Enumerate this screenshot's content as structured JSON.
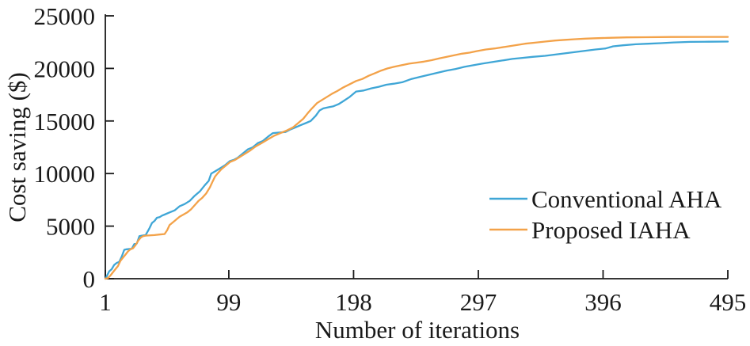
{
  "figure": {
    "description": "Convergence comparison line chart",
    "background": "#ffffff",
    "axis_color": "#1a1a1a"
  },
  "chart_data": {
    "type": "line",
    "title": "",
    "xlabel": "Number of iterations",
    "ylabel": "Cost saving ($)",
    "xlim": [
      1,
      495
    ],
    "ylim": [
      0,
      25000
    ],
    "xticks": [
      1,
      99,
      198,
      297,
      396,
      495
    ],
    "yticks": [
      0,
      5000,
      10000,
      15000,
      20000,
      25000
    ],
    "grid": false,
    "legend_position": "lower-right-inside",
    "legend_border": false,
    "series": [
      {
        "name": "Conventional AHA",
        "color": "#3FA6D6",
        "final_value": 22550,
        "points": [
          [
            1,
            0
          ],
          [
            2,
            200
          ],
          [
            4,
            700
          ],
          [
            6,
            900
          ],
          [
            8,
            1300
          ],
          [
            10,
            1500
          ],
          [
            12,
            1600
          ],
          [
            14,
            2100
          ],
          [
            16,
            2750
          ],
          [
            18,
            2800
          ],
          [
            22,
            2850
          ],
          [
            24,
            3300
          ],
          [
            26,
            3350
          ],
          [
            28,
            4050
          ],
          [
            30,
            4100
          ],
          [
            33,
            4150
          ],
          [
            36,
            4800
          ],
          [
            38,
            5300
          ],
          [
            40,
            5500
          ],
          [
            42,
            5800
          ],
          [
            44,
            5850
          ],
          [
            46,
            6000
          ],
          [
            48,
            6100
          ],
          [
            52,
            6300
          ],
          [
            56,
            6500
          ],
          [
            60,
            6900
          ],
          [
            64,
            7100
          ],
          [
            68,
            7400
          ],
          [
            72,
            7900
          ],
          [
            76,
            8300
          ],
          [
            80,
            8900
          ],
          [
            83,
            9300
          ],
          [
            85,
            10000
          ],
          [
            88,
            10200
          ],
          [
            92,
            10500
          ],
          [
            96,
            10800
          ],
          [
            100,
            11200
          ],
          [
            103,
            11300
          ],
          [
            106,
            11500
          ],
          [
            110,
            11900
          ],
          [
            114,
            12300
          ],
          [
            118,
            12500
          ],
          [
            122,
            12900
          ],
          [
            126,
            13100
          ],
          [
            130,
            13500
          ],
          [
            134,
            13850
          ],
          [
            139,
            13900
          ],
          [
            144,
            13950
          ],
          [
            148,
            14200
          ],
          [
            152,
            14400
          ],
          [
            156,
            14600
          ],
          [
            160,
            14800
          ],
          [
            164,
            15000
          ],
          [
            168,
            15500
          ],
          [
            171,
            16000
          ],
          [
            174,
            16200
          ],
          [
            178,
            16300
          ],
          [
            182,
            16400
          ],
          [
            186,
            16600
          ],
          [
            190,
            16900
          ],
          [
            195,
            17300
          ],
          [
            200,
            17800
          ],
          [
            206,
            17900
          ],
          [
            212,
            18100
          ],
          [
            218,
            18250
          ],
          [
            224,
            18450
          ],
          [
            230,
            18550
          ],
          [
            237,
            18700
          ],
          [
            244,
            19000
          ],
          [
            251,
            19200
          ],
          [
            258,
            19400
          ],
          [
            265,
            19600
          ],
          [
            272,
            19800
          ],
          [
            279,
            19950
          ],
          [
            286,
            20150
          ],
          [
            293,
            20300
          ],
          [
            300,
            20450
          ],
          [
            308,
            20600
          ],
          [
            316,
            20750
          ],
          [
            324,
            20900
          ],
          [
            332,
            21000
          ],
          [
            340,
            21100
          ],
          [
            350,
            21200
          ],
          [
            360,
            21350
          ],
          [
            370,
            21500
          ],
          [
            380,
            21650
          ],
          [
            390,
            21800
          ],
          [
            398,
            21900
          ],
          [
            404,
            22100
          ],
          [
            412,
            22200
          ],
          [
            422,
            22300
          ],
          [
            432,
            22350
          ],
          [
            442,
            22400
          ],
          [
            452,
            22470
          ],
          [
            465,
            22520
          ],
          [
            480,
            22540
          ],
          [
            495,
            22550
          ]
        ]
      },
      {
        "name": "Proposed IAHA",
        "color": "#F3A249",
        "final_value": 23000,
        "points": [
          [
            1,
            0
          ],
          [
            3,
            50
          ],
          [
            5,
            300
          ],
          [
            7,
            600
          ],
          [
            9,
            900
          ],
          [
            11,
            1200
          ],
          [
            13,
            1700
          ],
          [
            15,
            2000
          ],
          [
            17,
            2300
          ],
          [
            19,
            2600
          ],
          [
            21,
            2800
          ],
          [
            23,
            2900
          ],
          [
            25,
            3200
          ],
          [
            27,
            3600
          ],
          [
            29,
            3900
          ],
          [
            31,
            4050
          ],
          [
            33,
            4100
          ],
          [
            40,
            4150
          ],
          [
            44,
            4200
          ],
          [
            48,
            4250
          ],
          [
            50,
            4600
          ],
          [
            52,
            5100
          ],
          [
            54,
            5300
          ],
          [
            56,
            5500
          ],
          [
            58,
            5700
          ],
          [
            60,
            5900
          ],
          [
            63,
            6100
          ],
          [
            66,
            6300
          ],
          [
            69,
            6600
          ],
          [
            72,
            7000
          ],
          [
            75,
            7400
          ],
          [
            78,
            7700
          ],
          [
            81,
            8100
          ],
          [
            84,
            8700
          ],
          [
            86,
            9200
          ],
          [
            88,
            9700
          ],
          [
            90,
            10000
          ],
          [
            93,
            10400
          ],
          [
            96,
            10700
          ],
          [
            100,
            11100
          ],
          [
            104,
            11300
          ],
          [
            108,
            11600
          ],
          [
            112,
            11900
          ],
          [
            116,
            12200
          ],
          [
            120,
            12550
          ],
          [
            125,
            12900
          ],
          [
            130,
            13250
          ],
          [
            135,
            13600
          ],
          [
            140,
            13850
          ],
          [
            145,
            14100
          ],
          [
            150,
            14400
          ],
          [
            154,
            14800
          ],
          [
            158,
            15200
          ],
          [
            162,
            15800
          ],
          [
            165,
            16200
          ],
          [
            169,
            16700
          ],
          [
            173,
            17000
          ],
          [
            177,
            17300
          ],
          [
            181,
            17600
          ],
          [
            185,
            17850
          ],
          [
            190,
            18200
          ],
          [
            195,
            18500
          ],
          [
            200,
            18800
          ],
          [
            205,
            19000
          ],
          [
            210,
            19300
          ],
          [
            215,
            19550
          ],
          [
            220,
            19800
          ],
          [
            225,
            20000
          ],
          [
            230,
            20150
          ],
          [
            236,
            20300
          ],
          [
            242,
            20450
          ],
          [
            248,
            20550
          ],
          [
            254,
            20650
          ],
          [
            260,
            20780
          ],
          [
            266,
            20950
          ],
          [
            272,
            21100
          ],
          [
            278,
            21250
          ],
          [
            284,
            21400
          ],
          [
            290,
            21500
          ],
          [
            296,
            21650
          ],
          [
            303,
            21800
          ],
          [
            310,
            21900
          ],
          [
            318,
            22050
          ],
          [
            326,
            22200
          ],
          [
            334,
            22350
          ],
          [
            342,
            22450
          ],
          [
            350,
            22550
          ],
          [
            358,
            22650
          ],
          [
            366,
            22720
          ],
          [
            374,
            22780
          ],
          [
            382,
            22830
          ],
          [
            390,
            22870
          ],
          [
            400,
            22910
          ],
          [
            415,
            22950
          ],
          [
            430,
            22970
          ],
          [
            450,
            22990
          ],
          [
            495,
            23000
          ]
        ]
      }
    ]
  }
}
